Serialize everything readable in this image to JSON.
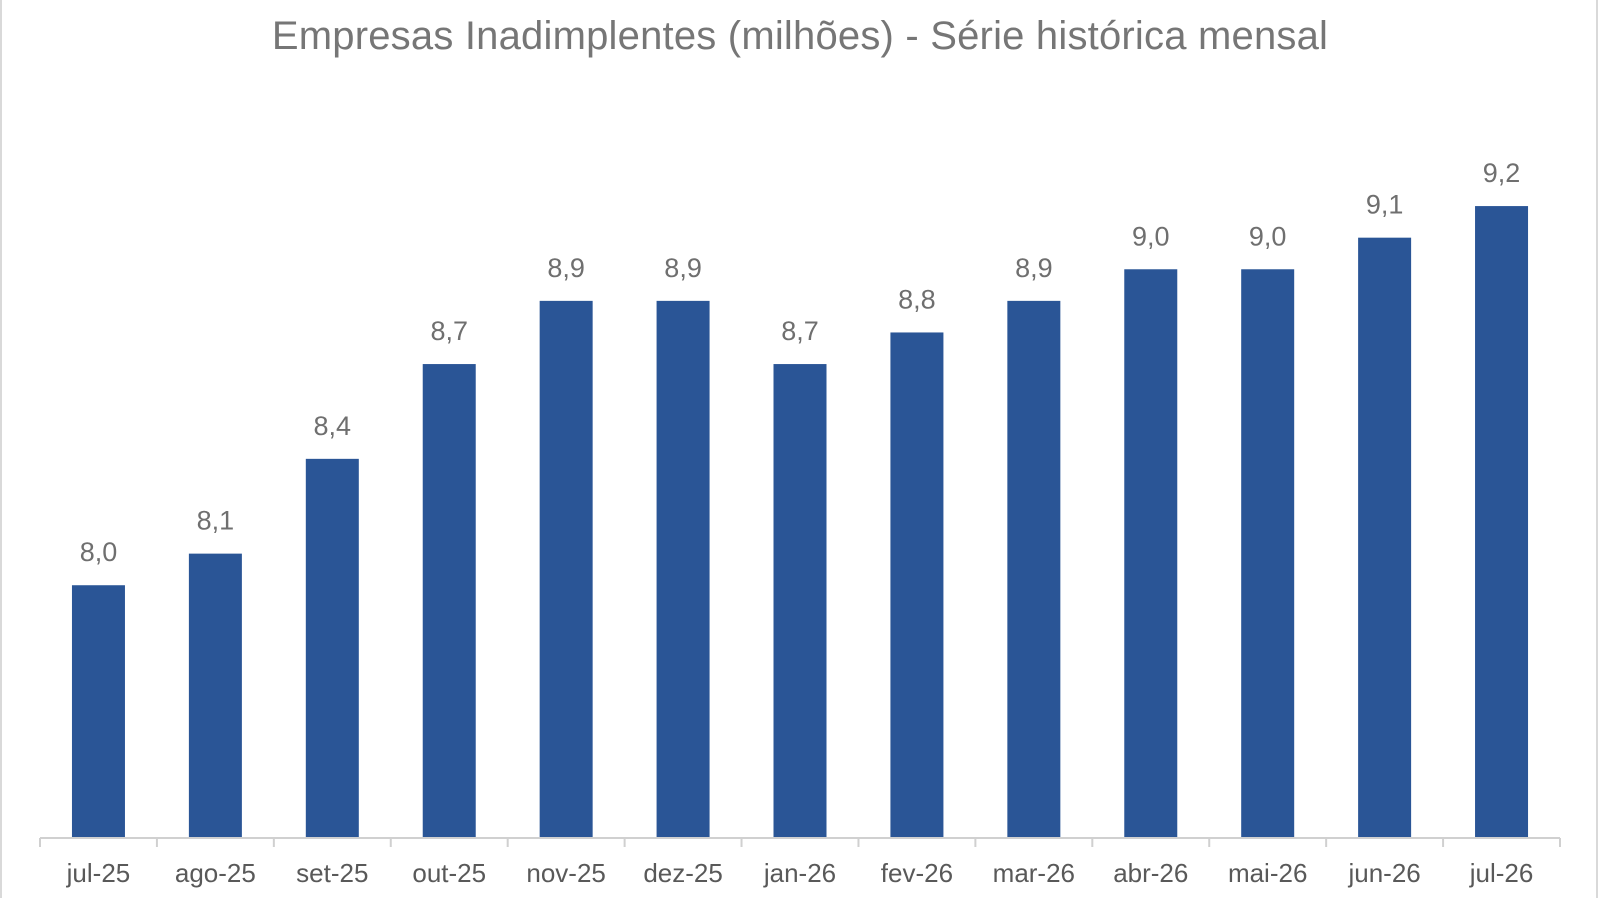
{
  "chart_data": {
    "type": "bar",
    "title": "Empresas Inadimplentes (milhões) - Série histórica mensal",
    "xlabel": "",
    "ylabel": "",
    "categories": [
      "jul-25",
      "ago-25",
      "set-25",
      "out-25",
      "nov-25",
      "dez-25",
      "jan-26",
      "fev-26",
      "mar-26",
      "abr-26",
      "mai-26",
      "jun-26",
      "jul-26"
    ],
    "values": [
      8.0,
      8.1,
      8.4,
      8.7,
      8.9,
      8.9,
      8.7,
      8.8,
      8.9,
      9.0,
      9.0,
      9.1,
      9.2
    ],
    "value_labels": [
      "8,0",
      "8,1",
      "8,4",
      "8,7",
      "8,9",
      "8,9",
      "8,7",
      "8,8",
      "8,9",
      "9,0",
      "9,0",
      "9,1",
      "9,2"
    ],
    "ylim": [
      7.2,
      9.33
    ],
    "grid": false,
    "legend": "none",
    "bar_color": "#2a5596"
  }
}
